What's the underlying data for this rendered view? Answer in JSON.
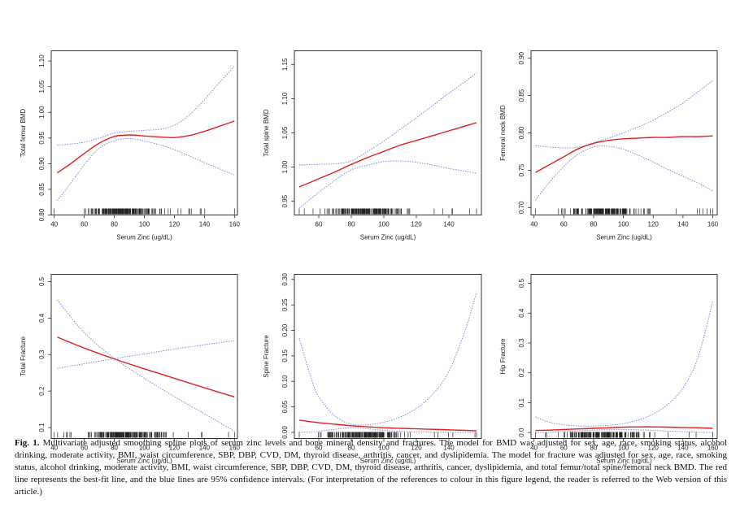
{
  "colors": {
    "fit": "#e02020",
    "ci": "#7b7be0",
    "axis": "#333333",
    "rug": "#222222"
  },
  "chart_data": [
    {
      "type": "line",
      "id": "total-femur-bmd",
      "xlabel": "Serum Zinc (ug/dL)",
      "ylabel": "Total femur BMD",
      "xlim": [
        38,
        162
      ],
      "ylim": [
        0.8,
        1.12
      ],
      "xticks": [
        40,
        60,
        80,
        100,
        120,
        140,
        160
      ],
      "yticks": [
        0.8,
        0.85,
        0.9,
        0.95,
        1.0,
        1.05,
        1.1
      ],
      "ytick_labels": [
        "0.80",
        "0.85",
        "0.90",
        "0.95",
        "1.00",
        "1.05",
        "1.10"
      ],
      "x": [
        42,
        50,
        60,
        70,
        80,
        90,
        100,
        110,
        120,
        130,
        140,
        150,
        160
      ],
      "series": [
        {
          "name": "fit",
          "values": [
            0.882,
            0.898,
            0.92,
            0.94,
            0.953,
            0.956,
            0.954,
            0.952,
            0.951,
            0.955,
            0.963,
            0.973,
            0.983
          ]
        },
        {
          "name": "upper",
          "values": [
            0.936,
            0.938,
            0.942,
            0.95,
            0.96,
            0.963,
            0.965,
            0.967,
            0.975,
            0.995,
            1.025,
            1.058,
            1.09
          ]
        },
        {
          "name": "lower",
          "values": [
            0.828,
            0.858,
            0.898,
            0.93,
            0.945,
            0.949,
            0.944,
            0.937,
            0.927,
            0.915,
            0.902,
            0.89,
            0.878
          ]
        }
      ],
      "rug_range": [
        40,
        160
      ]
    },
    {
      "type": "line",
      "id": "total-spine-bmd",
      "xlabel": "Serum Zinc (ug/dL)",
      "ylabel": "Total spine BMD",
      "xlim": [
        45,
        160
      ],
      "ylim": [
        0.93,
        1.17
      ],
      "xticks": [
        60,
        80,
        100,
        120,
        140
      ],
      "yticks": [
        0.95,
        1.0,
        1.05,
        1.1,
        1.15
      ],
      "ytick_labels": [
        "0.95",
        "1.00",
        "1.05",
        "1.10",
        "1.15"
      ],
      "x": [
        48,
        60,
        70,
        80,
        90,
        100,
        110,
        120,
        130,
        140,
        150,
        157
      ],
      "series": [
        {
          "name": "fit",
          "values": [
            0.971,
            0.983,
            0.993,
            1.004,
            1.014,
            1.023,
            1.032,
            1.039,
            1.046,
            1.053,
            1.06,
            1.065
          ]
        },
        {
          "name": "upper",
          "values": [
            1.003,
            1.004,
            1.005,
            1.009,
            1.023,
            1.038,
            1.055,
            1.072,
            1.09,
            1.108,
            1.125,
            1.138
          ]
        },
        {
          "name": "lower",
          "values": [
            0.94,
            0.963,
            0.981,
            0.996,
            1.003,
            1.008,
            1.009,
            1.007,
            1.003,
            0.998,
            0.994,
            0.991
          ]
        }
      ],
      "rug_range": [
        48,
        157
      ]
    },
    {
      "type": "line",
      "id": "femoral-neck-bmd",
      "xlabel": "Serum Zinc (ug/dL)",
      "ylabel": "Femoral neck BMD",
      "xlim": [
        38,
        163
      ],
      "ylim": [
        0.69,
        0.91
      ],
      "xticks": [
        40,
        60,
        80,
        100,
        120,
        140,
        160
      ],
      "yticks": [
        0.7,
        0.75,
        0.8,
        0.85,
        0.9
      ],
      "ytick_labels": [
        "0.70",
        "0.75",
        "0.80",
        "0.85",
        "0.90"
      ],
      "x": [
        41,
        50,
        60,
        70,
        80,
        90,
        100,
        110,
        120,
        130,
        140,
        150,
        160
      ],
      "series": [
        {
          "name": "fit",
          "values": [
            0.747,
            0.757,
            0.768,
            0.779,
            0.786,
            0.79,
            0.792,
            0.793,
            0.794,
            0.794,
            0.795,
            0.795,
            0.796
          ]
        },
        {
          "name": "upper",
          "values": [
            0.783,
            0.781,
            0.78,
            0.781,
            0.787,
            0.793,
            0.8,
            0.808,
            0.817,
            0.828,
            0.84,
            0.855,
            0.87
          ]
        },
        {
          "name": "lower",
          "values": [
            0.71,
            0.733,
            0.755,
            0.772,
            0.781,
            0.782,
            0.778,
            0.77,
            0.761,
            0.751,
            0.742,
            0.733,
            0.722
          ]
        }
      ],
      "rug_range": [
        41,
        160
      ]
    },
    {
      "type": "line",
      "id": "total-fracture",
      "xlabel": "Serum Zinc (ug/dL)",
      "ylabel": "Total Fracture",
      "xlim": [
        38,
        162
      ],
      "ylim": [
        0.07,
        0.52
      ],
      "xticks": [
        40,
        60,
        80,
        100,
        120,
        140,
        160
      ],
      "yticks": [
        0.1,
        0.2,
        0.3,
        0.4,
        0.5
      ],
      "ytick_labels": [
        "0.1",
        "0.2",
        "0.3",
        "0.4",
        "0.5"
      ],
      "x": [
        42,
        60,
        80,
        100,
        120,
        140,
        160
      ],
      "series": [
        {
          "name": "fit",
          "values": [
            0.348,
            0.318,
            0.288,
            0.261,
            0.235,
            0.209,
            0.184
          ]
        },
        {
          "name": "upper",
          "values": [
            0.262,
            0.275,
            0.289,
            0.302,
            0.315,
            0.327,
            0.338
          ]
        },
        {
          "name": "lower",
          "values": [
            0.45,
            0.36,
            0.29,
            0.235,
            0.185,
            0.138,
            0.09
          ]
        }
      ],
      "rug_range": [
        40,
        160
      ]
    },
    {
      "type": "line",
      "id": "spine-fracture",
      "xlabel": "Serum Zinc (ug/dL)",
      "ylabel": "Spine Fracture",
      "xlim": [
        45,
        160
      ],
      "ylim": [
        -0.012,
        0.31
      ],
      "xticks": [
        60,
        80,
        100,
        120,
        140
      ],
      "yticks": [
        0.0,
        0.05,
        0.1,
        0.15,
        0.2,
        0.25,
        0.3
      ],
      "ytick_labels": [
        "0.00",
        "0.05",
        "0.10",
        "0.15",
        "0.20",
        "0.25",
        "0.30"
      ],
      "x": [
        48,
        55,
        60,
        70,
        80,
        90,
        100,
        110,
        120,
        130,
        140,
        150,
        157
      ],
      "series": [
        {
          "name": "fit",
          "values": [
            0.024,
            0.021,
            0.019,
            0.016,
            0.013,
            0.011,
            0.009,
            0.008,
            0.007,
            0.006,
            0.005,
            0.004,
            0.003
          ]
        },
        {
          "name": "upper",
          "values": [
            0.185,
            0.11,
            0.07,
            0.032,
            0.016,
            0.015,
            0.02,
            0.03,
            0.047,
            0.075,
            0.12,
            0.2,
            0.275
          ]
        },
        {
          "name": "lower",
          "values": [
            0.0,
            0.001,
            0.002,
            0.006,
            0.009,
            0.007,
            0.004,
            0.002,
            0.001,
            0.0,
            0.0,
            0.0,
            0.0
          ]
        }
      ],
      "rug_range": [
        48,
        157
      ]
    },
    {
      "type": "line",
      "id": "hip-fracture",
      "xlabel": "Serum Zinc (ug/dL)",
      "ylabel": "Hip Fracture",
      "xlim": [
        38,
        163
      ],
      "ylim": [
        -0.02,
        0.53
      ],
      "xticks": [
        40,
        60,
        80,
        100,
        120,
        140,
        160
      ],
      "yticks": [
        0.0,
        0.1,
        0.2,
        0.3,
        0.4,
        0.5
      ],
      "ytick_labels": [
        "0.0",
        "0.1",
        "0.2",
        "0.3",
        "0.4",
        "0.5"
      ],
      "x": [
        41,
        50,
        60,
        70,
        80,
        90,
        100,
        110,
        120,
        130,
        140,
        150,
        160
      ],
      "series": [
        {
          "name": "fit",
          "values": [
            0.007,
            0.008,
            0.01,
            0.012,
            0.014,
            0.016,
            0.018,
            0.019,
            0.019,
            0.018,
            0.017,
            0.016,
            0.014
          ]
        },
        {
          "name": "upper",
          "values": [
            0.052,
            0.035,
            0.026,
            0.022,
            0.022,
            0.024,
            0.03,
            0.042,
            0.062,
            0.095,
            0.15,
            0.25,
            0.44
          ]
        },
        {
          "name": "lower",
          "values": [
            0.0,
            0.001,
            0.003,
            0.006,
            0.008,
            0.01,
            0.01,
            0.009,
            0.007,
            0.005,
            0.003,
            0.001,
            0.0
          ]
        }
      ],
      "rug_range": [
        41,
        160
      ]
    }
  ],
  "caption": {
    "label": "Fig. 1.",
    "text": " Multivariate adjusted smoothing spline plots of serum zinc levels and bone mineral density and fractures. The model for BMD was adjusted for sex, age, race, smoking status, alcohol drinking, moderate activity, BMI, waist circumference, SBP, DBP, CVD, DM, thyroid disease, arthritis, cancer, and dyslipidemia. The model for fracture was adjusted for sex, age, race, smoking status, alcohol drinking, moderate activity, BMI, waist circumference, SBP, DBP, CVD, DM, thyroid disease, arthritis, cancer, dyslipidemia, and total femur/total spine/femoral neck BMD. The red line represents the best-fit line, and the blue lines are 95% confidence intervals. (For interpretation of the references to colour in this figure legend, the reader is referred to the Web version of this article.)"
  }
}
